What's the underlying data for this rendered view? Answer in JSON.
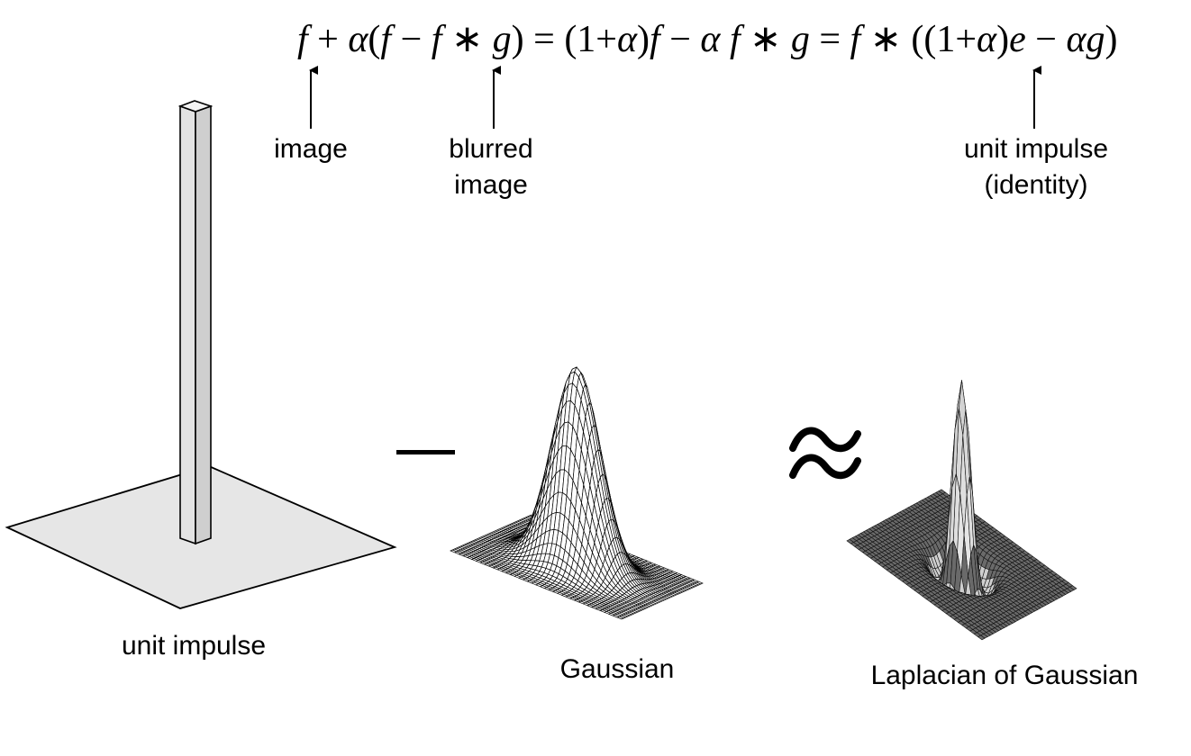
{
  "equation": {
    "p1": "f",
    "p2": " + ",
    "p3": "α",
    "p4": "(",
    "p5": "f",
    "p6": " − ",
    "p7": "f",
    "p8": " ∗ ",
    "p9": "g",
    "p10": ") = (1+",
    "p11": "α",
    "p12": ")",
    "p13": "f",
    "p14": " − ",
    "p15": "α f",
    "p16": " ∗ ",
    "p17": "g",
    "p18": " = ",
    "p19": "f",
    "p20": " ∗ ((1+",
    "p21": "α",
    "p22": ")",
    "p23": "e",
    "p24": " − ",
    "p25": "αg",
    "p26": ")"
  },
  "annotations": {
    "image": "image",
    "blurred_line1": "blurred",
    "blurred_line2": "image",
    "unit_line1": "unit impulse",
    "unit_line2": "(identity)"
  },
  "captions": {
    "unit_impulse": "unit impulse",
    "gaussian": "Gaussian",
    "log": "Laplacian of Gaussian"
  },
  "operators": {
    "minus": "—",
    "approx": "≈"
  },
  "colors": {
    "plate": "#e6e6e6",
    "bar_front": "#e2e2e2",
    "bar_side": "#cfcfcf",
    "log_base": "#555555",
    "mesh": "#000000"
  }
}
